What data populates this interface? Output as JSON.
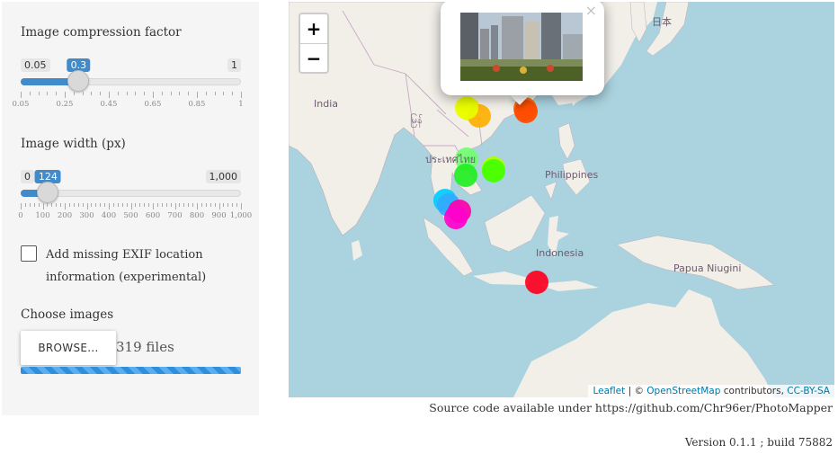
{
  "sidebar": {
    "compression": {
      "label": "Image compression factor",
      "min": "0.05",
      "max": "1",
      "value": "0.3",
      "fraction": 0.263,
      "ticks": [
        "0.05",
        "0.25",
        "0.45",
        "0.65",
        "0.85",
        "1"
      ]
    },
    "width": {
      "label": "Image width (px)",
      "min": "0",
      "max": "1,000",
      "value": "124",
      "fraction": 0.124,
      "ticks": [
        "0",
        "100",
        "200",
        "300",
        "400",
        "500",
        "600",
        "700",
        "800",
        "900",
        "1,000"
      ]
    },
    "exif_checkbox": {
      "label": "Add missing EXIF location information (experimental)",
      "checked": false
    },
    "choose_images": {
      "label": "Choose images",
      "button": "BROWSE...",
      "status": "319 files",
      "progress": 1.0
    }
  },
  "map": {
    "zoom_in": "+",
    "zoom_out": "−",
    "popup_close": "×",
    "labels": {
      "india": "India",
      "myanmar": "မြန်",
      "thailand": "ประเทศไทย",
      "philippines": "Philippines",
      "indonesia": "Indonesia",
      "papua": "Papua Niugini",
      "japan": "日本"
    },
    "attribution": {
      "leaflet": "Leaflet",
      "sep": " | © ",
      "osm": "OpenStreetMap",
      "contributors": " contributors, ",
      "license": "CC-BY-SA"
    }
  },
  "footer": {
    "source": "Source code available under https://github.com/Chr96er/PhotoMapper",
    "version": "Version 0.1.1 ; build 75882"
  }
}
